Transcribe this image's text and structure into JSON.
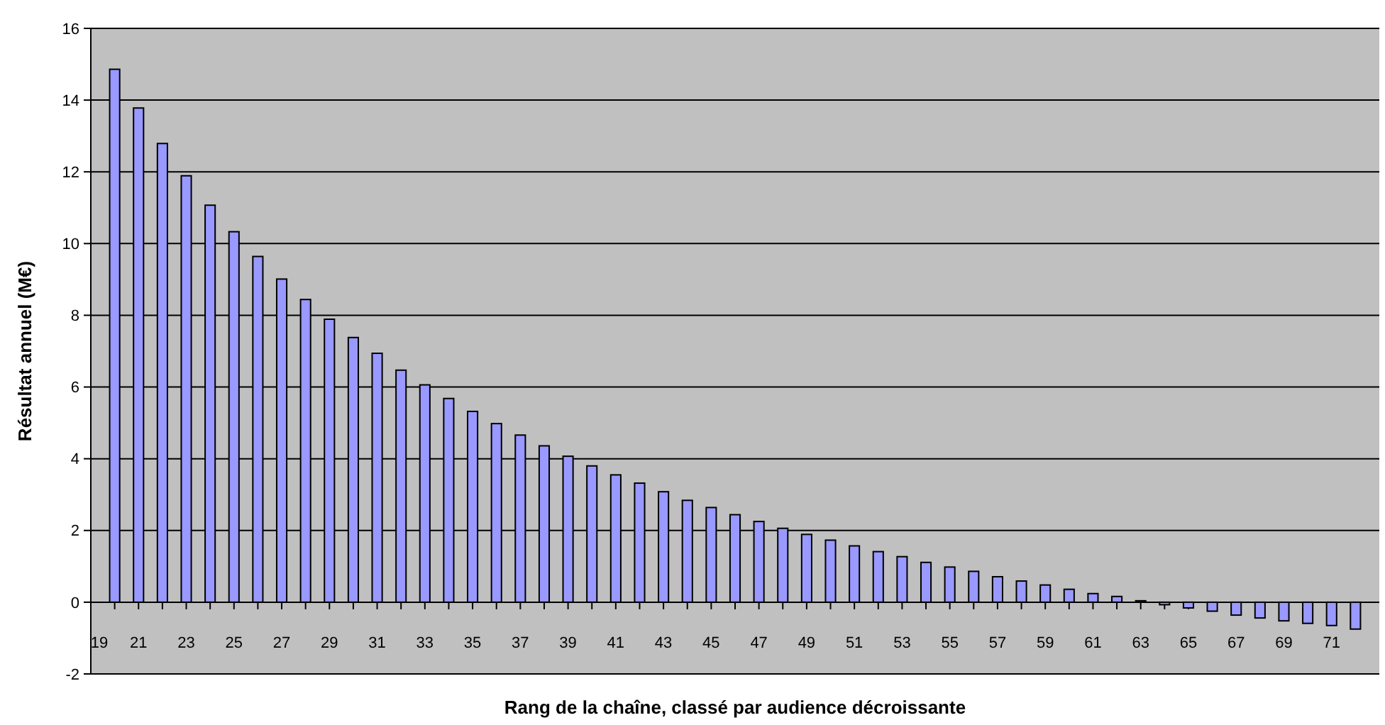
{
  "chart_data": {
    "type": "bar",
    "xlabel": "Rang de la chaîne, classé par audience décroissante",
    "ylabel": "Résultat annuel (M€)",
    "x": [
      20,
      21,
      22,
      23,
      24,
      25,
      26,
      27,
      28,
      29,
      30,
      31,
      32,
      33,
      34,
      35,
      36,
      37,
      38,
      39,
      40,
      41,
      42,
      43,
      44,
      45,
      46,
      47,
      48,
      49,
      50,
      51,
      52,
      53,
      54,
      55,
      56,
      57,
      58,
      59,
      60,
      61,
      62,
      63,
      64,
      65,
      66,
      67,
      68,
      69,
      70,
      71,
      72
    ],
    "values": [
      14.86,
      13.78,
      12.79,
      11.89,
      11.07,
      10.33,
      9.64,
      9.01,
      8.44,
      7.89,
      7.38,
      6.94,
      6.47,
      6.06,
      5.68,
      5.32,
      4.98,
      4.66,
      4.36,
      4.07,
      3.8,
      3.55,
      3.32,
      3.08,
      2.84,
      2.64,
      2.44,
      2.25,
      2.06,
      1.89,
      1.73,
      1.57,
      1.41,
      1.27,
      1.11,
      0.98,
      0.86,
      0.71,
      0.59,
      0.48,
      0.36,
      0.24,
      0.16,
      0.04,
      -0.07,
      -0.16,
      -0.25,
      -0.36,
      -0.44,
      -0.52,
      -0.59,
      -0.65,
      -0.75
    ],
    "color": "#9999ff",
    "xlim": [
      19,
      73
    ],
    "xticks": [
      19,
      {
        "value": 20,
        "label": null
      },
      21,
      {
        "value": 22,
        "label": null
      },
      23,
      {
        "value": 24,
        "label": null
      },
      25,
      {
        "value": 26,
        "label": null
      },
      27,
      {
        "value": 28,
        "label": null
      },
      29,
      {
        "value": 30,
        "label": null
      },
      31,
      {
        "value": 32,
        "label": null
      },
      33,
      {
        "value": 34,
        "label": null
      },
      35,
      {
        "value": 36,
        "label": null
      },
      37,
      {
        "value": 38,
        "label": null
      },
      39,
      {
        "value": 40,
        "label": null
      },
      41,
      {
        "value": 42,
        "label": null
      },
      43,
      {
        "value": 44,
        "label": null
      },
      45,
      {
        "value": 46,
        "label": null
      },
      47,
      {
        "value": 48,
        "label": null
      },
      49,
      {
        "value": 50,
        "label": null
      },
      51,
      {
        "value": 52,
        "label": null
      },
      53,
      {
        "value": 54,
        "label": null
      },
      55,
      {
        "value": 56,
        "label": null
      },
      57,
      {
        "value": 58,
        "label": null
      },
      59,
      {
        "value": 60,
        "label": null
      },
      61,
      {
        "value": 62,
        "label": null
      },
      63,
      {
        "value": 64,
        "label": null
      },
      65,
      {
        "value": 66,
        "label": null
      },
      67,
      {
        "value": 68,
        "label": null
      },
      69,
      {
        "value": 70,
        "label": null
      },
      71,
      {
        "value": 72,
        "label": null
      }
    ],
    "ylim": [
      -2,
      16
    ],
    "yticks": [
      -2,
      0,
      2,
      4,
      6,
      8,
      10,
      12,
      14,
      16
    ],
    "grid": "y"
  }
}
